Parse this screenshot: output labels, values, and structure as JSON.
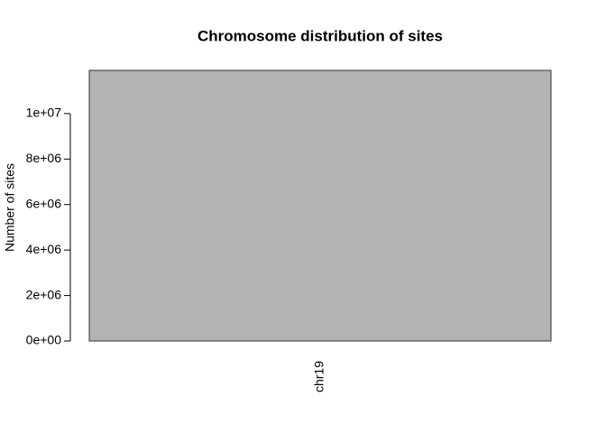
{
  "chart_data": {
    "type": "bar",
    "title": "Chromosome distribution of sites",
    "ylabel": "Number of sites",
    "categories": [
      "chr19"
    ],
    "values": [
      11900000
    ],
    "color": "#b3b3b3",
    "ylim": [
      0,
      11900000
    ],
    "yticks": [
      {
        "value": 0,
        "label": "0e+00"
      },
      {
        "value": 2000000,
        "label": "2e+06"
      },
      {
        "value": 4000000,
        "label": "4e+06"
      },
      {
        "value": 6000000,
        "label": "6e+06"
      },
      {
        "value": 8000000,
        "label": "8e+06"
      },
      {
        "value": 10000000,
        "label": "1e+07"
      }
    ]
  }
}
